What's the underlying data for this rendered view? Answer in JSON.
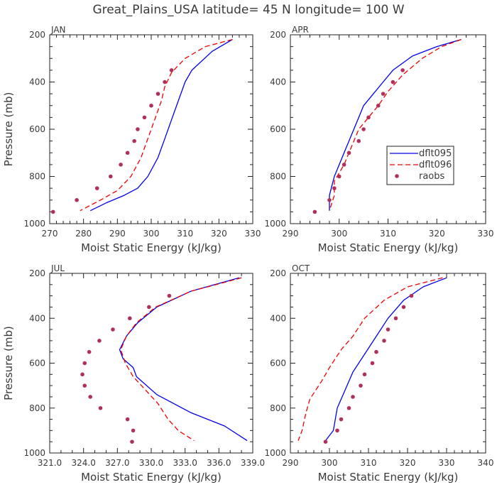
{
  "title": "Great_Plains_USA   latitude= 45 N longitude= 100 W",
  "colors": {
    "dflt095": "#0000ee",
    "dflt096": "#ee0000",
    "raobs": "#b0305a",
    "axis": "#222222",
    "text": "#3a3a3a"
  },
  "legend": {
    "entries": [
      "dflt095",
      "dflt096",
      "raobs"
    ]
  },
  "chart_data": [
    {
      "type": "line",
      "panel": "JAN",
      "xlabel": "Moist Static Energy (kJ/kg)",
      "ylabel": "Pressure (mb)",
      "xlim": [
        270,
        330
      ],
      "ylim": [
        1000,
        200
      ],
      "xticks": [
        "270",
        "280",
        "290",
        "300",
        "310",
        "320",
        "330"
      ],
      "yticks": [
        "200",
        "400",
        "600",
        "800",
        "1000"
      ],
      "legend_visible": false,
      "series": [
        {
          "name": "dflt095",
          "style": "solid",
          "points": [
            [
              324,
              220
            ],
            [
              318,
              270
            ],
            [
              312,
              350
            ],
            [
              310,
              400
            ],
            [
              308,
              480
            ],
            [
              306,
              560
            ],
            [
              304,
              640
            ],
            [
              302,
              720
            ],
            [
              299,
              800
            ],
            [
              296,
              850
            ],
            [
              292,
              880
            ],
            [
              287,
              910
            ],
            [
              282,
              945
            ]
          ]
        },
        {
          "name": "dflt096",
          "style": "dashed",
          "points": [
            [
              324,
              220
            ],
            [
              316,
              250
            ],
            [
              310,
              300
            ],
            [
              306,
              360
            ],
            [
              304,
              420
            ],
            [
              303,
              480
            ],
            [
              301,
              560
            ],
            [
              299,
              640
            ],
            [
              297,
              720
            ],
            [
              294,
              800
            ],
            [
              290,
              860
            ],
            [
              285,
              900
            ],
            [
              279,
              945
            ]
          ]
        },
        {
          "name": "raobs",
          "style": "dots",
          "points": [
            [
              271,
              950
            ],
            [
              278,
              900
            ],
            [
              284,
              850
            ],
            [
              288,
              800
            ],
            [
              291,
              750
            ],
            [
              293,
              700
            ],
            [
              295,
              650
            ],
            [
              296,
              600
            ],
            [
              298,
              550
            ],
            [
              300,
              500
            ],
            [
              302,
              450
            ],
            [
              304,
              400
            ],
            [
              306,
              350
            ]
          ]
        }
      ]
    },
    {
      "type": "line",
      "panel": "APR",
      "xlabel": "Moist Static Energy (kJ/kg)",
      "ylabel": "",
      "xlim": [
        290,
        330
      ],
      "ylim": [
        1000,
        200
      ],
      "xticks": [
        "290",
        "300",
        "310",
        "320",
        "330"
      ],
      "yticks": [
        "200",
        "400",
        "600",
        "800",
        "1000"
      ],
      "legend_visible": true,
      "series": [
        {
          "name": "dflt095",
          "style": "solid",
          "points": [
            [
              325,
              220
            ],
            [
              320,
              250
            ],
            [
              315,
              290
            ],
            [
              311,
              350
            ],
            [
              309,
              400
            ],
            [
              307,
              450
            ],
            [
              305,
              500
            ],
            [
              304,
              550
            ],
            [
              303,
              600
            ],
            [
              302,
              650
            ],
            [
              301,
              700
            ],
            [
              300,
              750
            ],
            [
              299,
              800
            ],
            [
              298,
              880
            ],
            [
              298,
              945
            ]
          ]
        },
        {
          "name": "dflt096",
          "style": "dashed",
          "points": [
            [
              325,
              220
            ],
            [
              321,
              250
            ],
            [
              317,
              300
            ],
            [
              313,
              370
            ],
            [
              310,
              440
            ],
            [
              308,
              500
            ],
            [
              306,
              550
            ],
            [
              304,
              600
            ],
            [
              302,
              700
            ],
            [
              301,
              750
            ],
            [
              299,
              820
            ],
            [
              299,
              880
            ],
            [
              298,
              945
            ]
          ]
        },
        {
          "name": "raobs",
          "style": "dots",
          "points": [
            [
              295,
              950
            ],
            [
              298,
              900
            ],
            [
              299,
              850
            ],
            [
              300,
              800
            ],
            [
              301,
              750
            ],
            [
              302,
              700
            ],
            [
              304,
              650
            ],
            [
              305,
              600
            ],
            [
              306,
              550
            ],
            [
              308,
              500
            ],
            [
              309,
              450
            ],
            [
              311,
              400
            ],
            [
              313,
              350
            ]
          ]
        }
      ]
    },
    {
      "type": "line",
      "panel": "JUL",
      "xlabel": "Moist Static Energy (kJ/kg)",
      "ylabel": "Pressure (mb)",
      "xlim": [
        321.0,
        339.0
      ],
      "ylim": [
        1000,
        200
      ],
      "xticks": [
        "321.0",
        "324.0",
        "327.0",
        "330.0",
        "333.0",
        "336.0",
        "339.0"
      ],
      "yticks": [
        "200",
        "400",
        "600",
        "800",
        "1000"
      ],
      "legend_visible": false,
      "series": [
        {
          "name": "dflt095",
          "style": "solid",
          "points": [
            [
              337.8,
              220
            ],
            [
              333.5,
              280
            ],
            [
              330.5,
              350
            ],
            [
              328.8,
              420
            ],
            [
              327.8,
              480
            ],
            [
              327.2,
              540
            ],
            [
              327.5,
              580
            ],
            [
              328.4,
              620
            ],
            [
              328.7,
              660
            ],
            [
              330.5,
              740
            ],
            [
              333.5,
              820
            ],
            [
              336.5,
              880
            ],
            [
              338.5,
              945
            ]
          ]
        },
        {
          "name": "dflt096",
          "style": "dashed",
          "points": [
            [
              338.0,
              220
            ],
            [
              333.5,
              280
            ],
            [
              330.4,
              350
            ],
            [
              328.7,
              420
            ],
            [
              327.8,
              480
            ],
            [
              327.3,
              540
            ],
            [
              327.7,
              600
            ],
            [
              328.4,
              660
            ],
            [
              329.5,
              720
            ],
            [
              330.6,
              780
            ],
            [
              331.5,
              850
            ],
            [
              332.4,
              900
            ],
            [
              333.8,
              945
            ]
          ]
        },
        {
          "name": "raobs",
          "style": "dots",
          "points": [
            [
              328.3,
              950
            ],
            [
              328.4,
              900
            ],
            [
              327.9,
              850
            ],
            [
              325.5,
              800
            ],
            [
              324.6,
              750
            ],
            [
              324.1,
              700
            ],
            [
              323.9,
              650
            ],
            [
              324.1,
              600
            ],
            [
              324.5,
              550
            ],
            [
              325.4,
              500
            ],
            [
              326.6,
              450
            ],
            [
              328.1,
              400
            ],
            [
              329.8,
              350
            ],
            [
              331.6,
              300
            ]
          ]
        }
      ]
    },
    {
      "type": "line",
      "panel": "OCT",
      "xlabel": "Moist Static Energy (kJ/kg)",
      "ylabel": "",
      "xlim": [
        290,
        340
      ],
      "ylim": [
        1000,
        200
      ],
      "xticks": [
        "290",
        "300",
        "310",
        "320",
        "330",
        "340"
      ],
      "yticks": [
        "200",
        "400",
        "600",
        "800",
        "1000"
      ],
      "legend_visible": false,
      "series": [
        {
          "name": "dflt095",
          "style": "solid",
          "points": [
            [
              330,
              220
            ],
            [
              324,
              260
            ],
            [
              319,
              320
            ],
            [
              315,
              400
            ],
            [
              312,
              480
            ],
            [
              309,
              560
            ],
            [
              306,
              640
            ],
            [
              304,
              720
            ],
            [
              302,
              800
            ],
            [
              301,
              900
            ],
            [
              299,
              945
            ]
          ]
        },
        {
          "name": "dflt096",
          "style": "dashed",
          "points": [
            [
              329,
              220
            ],
            [
              320,
              260
            ],
            [
              314,
              320
            ],
            [
              309,
              400
            ],
            [
              306,
              480
            ],
            [
              303,
              540
            ],
            [
              300,
              620
            ],
            [
              298,
              680
            ],
            [
              295,
              760
            ],
            [
              294,
              820
            ],
            [
              293,
              900
            ],
            [
              292,
              945
            ]
          ]
        },
        {
          "name": "raobs",
          "style": "dots",
          "points": [
            [
              299,
              950
            ],
            [
              302,
              900
            ],
            [
              303,
              850
            ],
            [
              305,
              800
            ],
            [
              306,
              750
            ],
            [
              308,
              700
            ],
            [
              309,
              650
            ],
            [
              311,
              600
            ],
            [
              312,
              550
            ],
            [
              314,
              500
            ],
            [
              315,
              450
            ],
            [
              317,
              400
            ],
            [
              319,
              350
            ],
            [
              321,
              300
            ]
          ]
        }
      ]
    }
  ]
}
